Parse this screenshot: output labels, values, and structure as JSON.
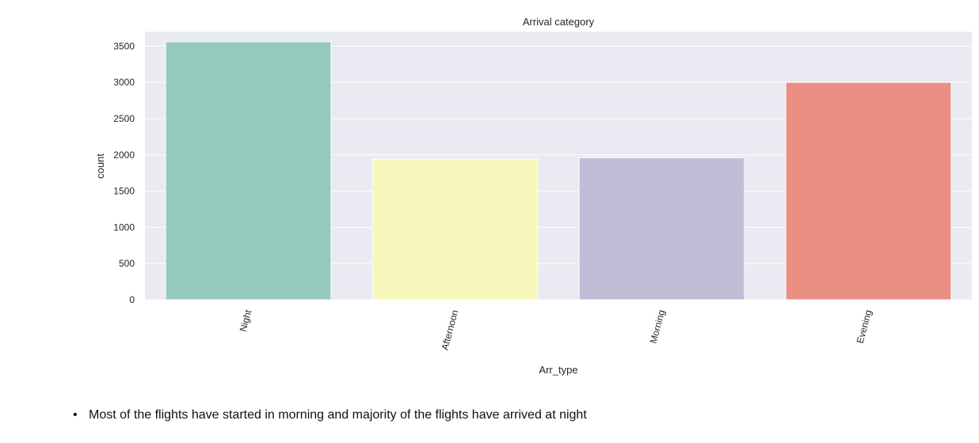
{
  "chart_data": {
    "type": "bar",
    "title": "Arrival category",
    "xlabel": "Arr_type",
    "ylabel": "count",
    "categories": [
      "Night",
      "Afternoon",
      "Morning",
      "Evening"
    ],
    "values": [
      3560,
      1940,
      1960,
      3000
    ],
    "colors": [
      "#96c9be",
      "#f7f7bb",
      "#c1bdd6",
      "#eb8f82"
    ],
    "yticks": [
      "0",
      "500",
      "1000",
      "1500",
      "2000",
      "2500",
      "3000",
      "3500"
    ],
    "ylim": [
      0,
      3700
    ],
    "grid": true,
    "background": "#eaeaf2"
  },
  "notes": [
    "Most of the flights have started in morning and majority of the flights have arrived at night"
  ]
}
